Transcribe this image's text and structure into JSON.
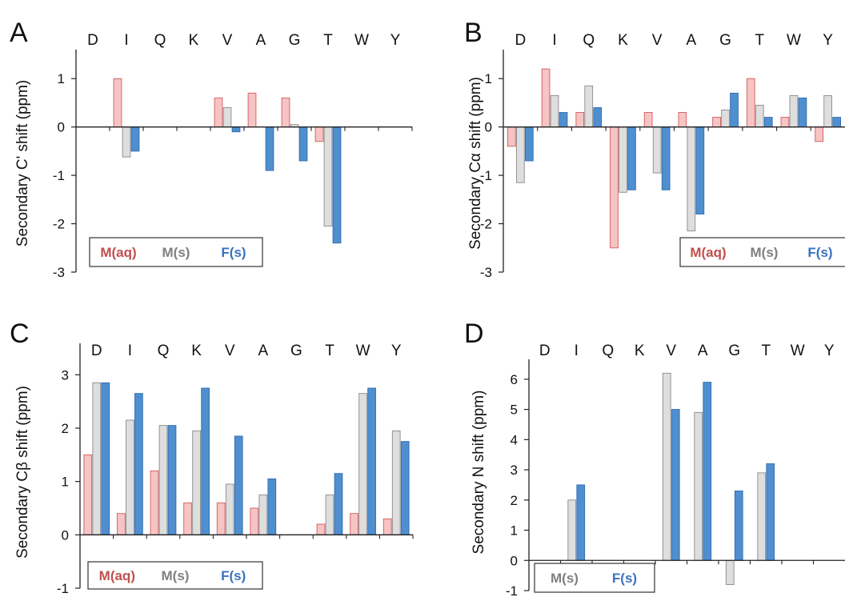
{
  "figure": {
    "panels": [
      {
        "letter": "A",
        "ylabel": "Secondary C' shift (ppm)"
      },
      {
        "letter": "B",
        "ylabel": "Secondary Cα shift (ppm)"
      },
      {
        "letter": "C",
        "ylabel": "Secondary Cβ shift (ppm)"
      },
      {
        "letter": "D",
        "ylabel": "Secondary N shift (ppm)"
      }
    ]
  },
  "colors": {
    "M(aq)": {
      "fill": "#f7c4c4",
      "stroke": "#d05a5a",
      "text": "#c0504d"
    },
    "M(s)": {
      "fill": "#dedede",
      "stroke": "#8a8a8a",
      "text": "#808080"
    },
    "F(s)": {
      "fill": "#4f8fd0",
      "stroke": "#2f6bb0",
      "text": "#3a72c0"
    }
  },
  "chart_data": [
    {
      "type": "bar",
      "title": "",
      "xlabel": "",
      "ylabel": "Secondary C' shift (ppm)",
      "categories": [
        "D",
        "I",
        "Q",
        "K",
        "V",
        "A",
        "G",
        "T",
        "W",
        "Y"
      ],
      "ylim": [
        -3,
        1.5
      ],
      "yticks": [
        -3,
        -2,
        -1,
        0,
        1
      ],
      "legend": "bottom-left",
      "series": [
        {
          "name": "M(aq)",
          "values": [
            null,
            1.0,
            null,
            null,
            0.6,
            0.7,
            0.6,
            -0.3,
            null,
            null
          ]
        },
        {
          "name": "M(s)",
          "values": [
            null,
            -0.62,
            null,
            null,
            0.4,
            null,
            0.05,
            -2.05,
            null,
            null
          ]
        },
        {
          "name": "F(s)",
          "values": [
            null,
            -0.5,
            null,
            null,
            -0.1,
            -0.9,
            -0.7,
            -2.4,
            null,
            null
          ]
        }
      ]
    },
    {
      "type": "bar",
      "title": "",
      "xlabel": "",
      "ylabel": "Secondary Cα shift (ppm)",
      "categories": [
        "D",
        "I",
        "Q",
        "K",
        "V",
        "A",
        "G",
        "T",
        "W",
        "Y"
      ],
      "ylim": [
        -3,
        1.5
      ],
      "yticks": [
        -3,
        -2,
        -1,
        0,
        1
      ],
      "legend": "bottom-right",
      "series": [
        {
          "name": "M(aq)",
          "values": [
            -0.4,
            1.2,
            0.3,
            -2.5,
            0.3,
            0.3,
            0.2,
            1.0,
            0.2,
            -0.3
          ]
        },
        {
          "name": "M(s)",
          "values": [
            -1.15,
            0.65,
            0.85,
            -1.35,
            -0.95,
            -2.15,
            0.35,
            0.45,
            0.65,
            0.65
          ]
        },
        {
          "name": "F(s)",
          "values": [
            -0.7,
            0.3,
            0.4,
            -1.3,
            -1.3,
            -1.8,
            0.7,
            0.2,
            0.6,
            0.2
          ]
        }
      ]
    },
    {
      "type": "bar",
      "title": "",
      "xlabel": "",
      "ylabel": "Secondary Cβ shift (ppm)",
      "categories": [
        "D",
        "I",
        "Q",
        "K",
        "V",
        "A",
        "G",
        "T",
        "W",
        "Y"
      ],
      "ylim": [
        -1,
        3.5
      ],
      "yticks": [
        -1,
        0,
        1,
        2,
        3
      ],
      "legend": "bottom-left",
      "series": [
        {
          "name": "M(aq)",
          "values": [
            1.5,
            0.4,
            1.2,
            0.6,
            0.6,
            0.5,
            null,
            0.2,
            0.4,
            0.3
          ]
        },
        {
          "name": "M(s)",
          "values": [
            2.85,
            2.15,
            2.05,
            1.95,
            0.95,
            0.75,
            null,
            0.75,
            2.65,
            1.95
          ]
        },
        {
          "name": "F(s)",
          "values": [
            2.85,
            2.65,
            2.05,
            2.75,
            1.85,
            1.05,
            null,
            1.15,
            2.75,
            1.75
          ]
        }
      ]
    },
    {
      "type": "bar",
      "title": "",
      "xlabel": "",
      "ylabel": "Secondary N shift (ppm)",
      "categories": [
        "D",
        "I",
        "Q",
        "K",
        "V",
        "A",
        "G",
        "T",
        "W",
        "Y"
      ],
      "ylim": [
        -1,
        6.5
      ],
      "yticks": [
        -1,
        0,
        1,
        2,
        3,
        4,
        5,
        6
      ],
      "legend": "bottom-left",
      "series": [
        {
          "name": "M(s)",
          "values": [
            null,
            2.0,
            null,
            null,
            6.2,
            4.9,
            -0.8,
            2.9,
            null,
            null
          ]
        },
        {
          "name": "F(s)",
          "values": [
            null,
            2.5,
            null,
            null,
            5.0,
            5.9,
            2.3,
            3.2,
            null,
            null
          ]
        }
      ]
    }
  ]
}
